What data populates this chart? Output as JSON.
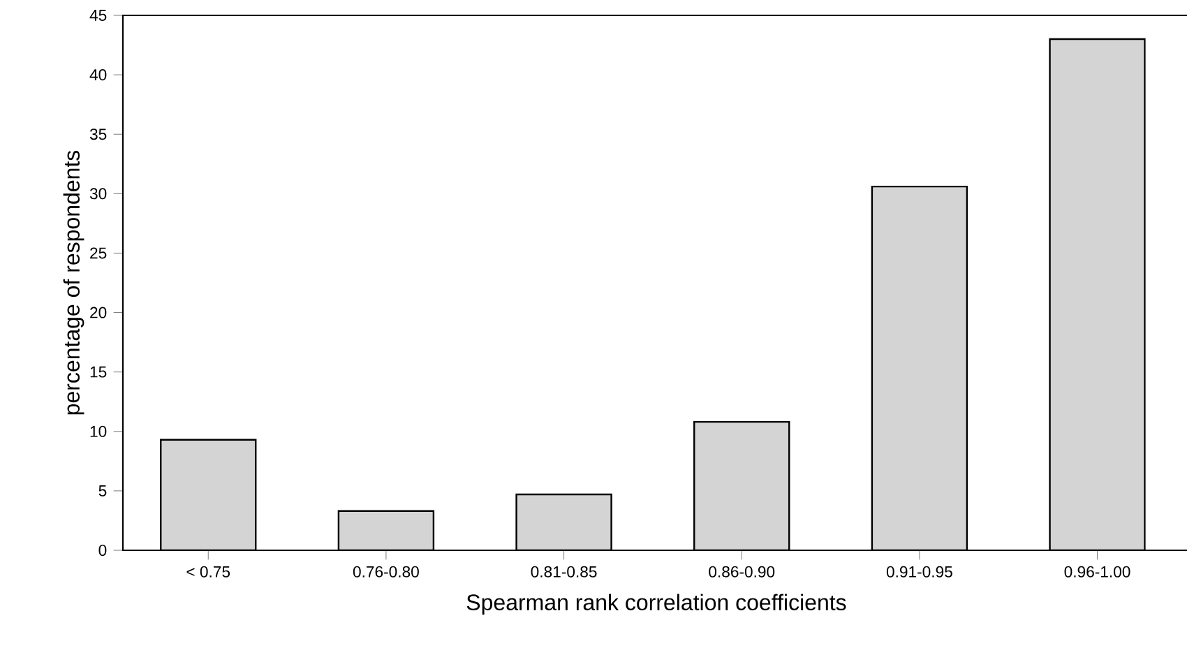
{
  "chart_data": {
    "type": "bar",
    "xlabel": "Spearman rank correlation coefficients",
    "ylabel": "percentage of respondents",
    "categories": [
      "< 0.75",
      "0.76-0.80",
      "0.81-0.85",
      "0.86-0.90",
      "0.91-0.95",
      "0.96-1.00"
    ],
    "values": [
      9.3,
      3.3,
      4.7,
      10.8,
      30.6,
      43.0
    ],
    "color": "#d4d4d4",
    "ylim": [
      0,
      45
    ],
    "yticks": [
      0,
      5,
      10,
      15,
      20,
      25,
      30,
      35,
      40,
      45
    ]
  }
}
